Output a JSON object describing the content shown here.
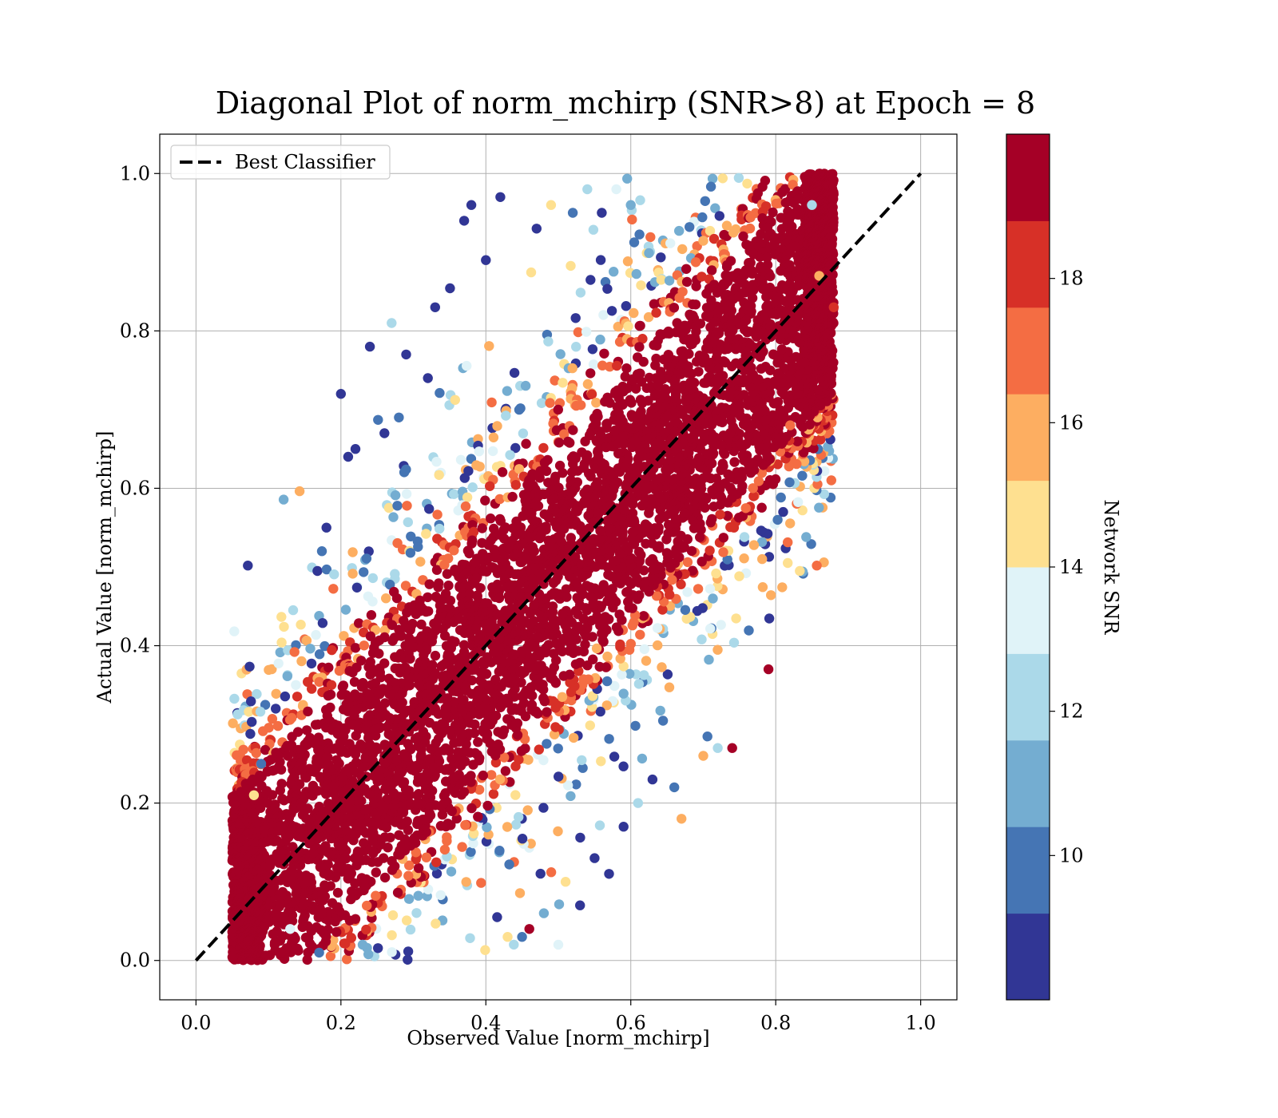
{
  "chart_data": {
    "type": "scatter",
    "title": "Diagonal Plot of norm_mchirp (SNR>8) at Epoch = 8",
    "xlabel": "Observed Value [norm_mchirp]",
    "ylabel": "Actual Value [norm_mchirp]",
    "xlim": [
      -0.05,
      1.05
    ],
    "ylim": [
      -0.05,
      1.05
    ],
    "xticks": [
      "0.0",
      "0.2",
      "0.4",
      "0.6",
      "0.8",
      "1.0"
    ],
    "yticks": [
      "0.0",
      "0.2",
      "0.4",
      "0.6",
      "0.8",
      "1.0"
    ],
    "grid": true,
    "legend": {
      "position": "top-left",
      "entries": [
        "Best Classifier"
      ]
    },
    "reference_line": {
      "name": "Best Classifier",
      "style": "dashed",
      "color": "#000000",
      "x": [
        0.0,
        1.0
      ],
      "y": [
        0.0,
        1.0
      ]
    },
    "colorbar": {
      "label": "Network SNR",
      "range": [
        8,
        20
      ],
      "ticks": [
        "10",
        "12",
        "14",
        "16",
        "18"
      ],
      "colormap": "RdYlBu_r",
      "levels": [
        "#313695",
        "#4575b4",
        "#74add1",
        "#abd9e9",
        "#e0f3f8",
        "#fee090",
        "#fdae61",
        "#f46d43",
        "#d73027",
        "#a50026"
      ]
    },
    "point_cloud": {
      "description": "Dense band of points along the diagonal; observed ≈ actual with spread ~±0.15, clipped to ~0.05–0.88 observed and 0.0–1.0 actual; high-SNR (dark red) points dominate the core, lower SNR (blue) points scatter to the edges",
      "observed_range": [
        0.05,
        0.88
      ],
      "actual_range": [
        0.0,
        1.0
      ],
      "core_snr": 20,
      "edge_snr": 8
    },
    "outlier_points": [
      {
        "x": 0.2,
        "y": 0.72,
        "snr": 8
      },
      {
        "x": 0.21,
        "y": 0.64,
        "snr": 8
      },
      {
        "x": 0.18,
        "y": 0.55,
        "snr": 8
      },
      {
        "x": 0.24,
        "y": 0.78,
        "snr": 8
      },
      {
        "x": 0.38,
        "y": 0.96,
        "snr": 8
      },
      {
        "x": 0.42,
        "y": 0.97,
        "snr": 8
      },
      {
        "x": 0.37,
        "y": 0.94,
        "snr": 8
      },
      {
        "x": 0.4,
        "y": 0.89,
        "snr": 8
      },
      {
        "x": 0.33,
        "y": 0.83,
        "snr": 8
      },
      {
        "x": 0.27,
        "y": 0.81,
        "snr": 12
      },
      {
        "x": 0.11,
        "y": 0.32,
        "snr": 8
      },
      {
        "x": 0.09,
        "y": 0.25,
        "snr": 10
      },
      {
        "x": 0.08,
        "y": 0.21,
        "snr": 15
      },
      {
        "x": 0.74,
        "y": 0.27,
        "snr": 19
      },
      {
        "x": 0.79,
        "y": 0.37,
        "snr": 19
      },
      {
        "x": 0.7,
        "y": 0.26,
        "snr": 16
      },
      {
        "x": 0.72,
        "y": 0.27,
        "snr": 12
      },
      {
        "x": 0.88,
        "y": 0.83,
        "snr": 18
      },
      {
        "x": 0.84,
        "y": 0.76,
        "snr": 20
      },
      {
        "x": 0.85,
        "y": 0.96,
        "snr": 12
      },
      {
        "x": 0.5,
        "y": 0.02,
        "snr": 13
      },
      {
        "x": 0.45,
        "y": 0.03,
        "snr": 10
      },
      {
        "x": 0.53,
        "y": 0.07,
        "snr": 9
      },
      {
        "x": 0.57,
        "y": 0.11,
        "snr": 9
      },
      {
        "x": 0.46,
        "y": 0.04,
        "snr": 20
      },
      {
        "x": 0.61,
        "y": 0.2,
        "snr": 12
      },
      {
        "x": 0.66,
        "y": 0.22,
        "snr": 10
      },
      {
        "x": 0.63,
        "y": 0.23,
        "snr": 9
      },
      {
        "x": 0.59,
        "y": 0.17,
        "snr": 8
      },
      {
        "x": 0.67,
        "y": 0.18,
        "snr": 16
      },
      {
        "x": 0.48,
        "y": 0.06,
        "snr": 11
      },
      {
        "x": 0.55,
        "y": 0.13,
        "snr": 8
      },
      {
        "x": 0.43,
        "y": 0.03,
        "snr": 15
      },
      {
        "x": 0.51,
        "y": 0.1,
        "snr": 14
      },
      {
        "x": 0.29,
        "y": 0.77,
        "snr": 8
      },
      {
        "x": 0.32,
        "y": 0.74,
        "snr": 8
      },
      {
        "x": 0.26,
        "y": 0.67,
        "snr": 8
      },
      {
        "x": 0.22,
        "y": 0.65,
        "snr": 8
      },
      {
        "x": 0.28,
        "y": 0.69,
        "snr": 10
      },
      {
        "x": 0.47,
        "y": 0.93,
        "snr": 8
      },
      {
        "x": 0.52,
        "y": 0.95,
        "snr": 10
      },
      {
        "x": 0.54,
        "y": 0.98,
        "snr": 12
      },
      {
        "x": 0.49,
        "y": 0.96,
        "snr": 14
      },
      {
        "x": 0.58,
        "y": 0.98,
        "snr": 13
      },
      {
        "x": 0.56,
        "y": 0.95,
        "snr": 8
      },
      {
        "x": 0.6,
        "y": 0.96,
        "snr": 11
      },
      {
        "x": 0.86,
        "y": 0.87,
        "snr": 16
      },
      {
        "x": 0.83,
        "y": 0.72,
        "snr": 19
      },
      {
        "x": 0.82,
        "y": 0.68,
        "snr": 17
      },
      {
        "x": 0.13,
        "y": 0.04,
        "snr": 13
      },
      {
        "x": 0.17,
        "y": 0.01,
        "snr": 10
      },
      {
        "x": 0.23,
        "y": 0.02,
        "snr": 11
      }
    ]
  }
}
